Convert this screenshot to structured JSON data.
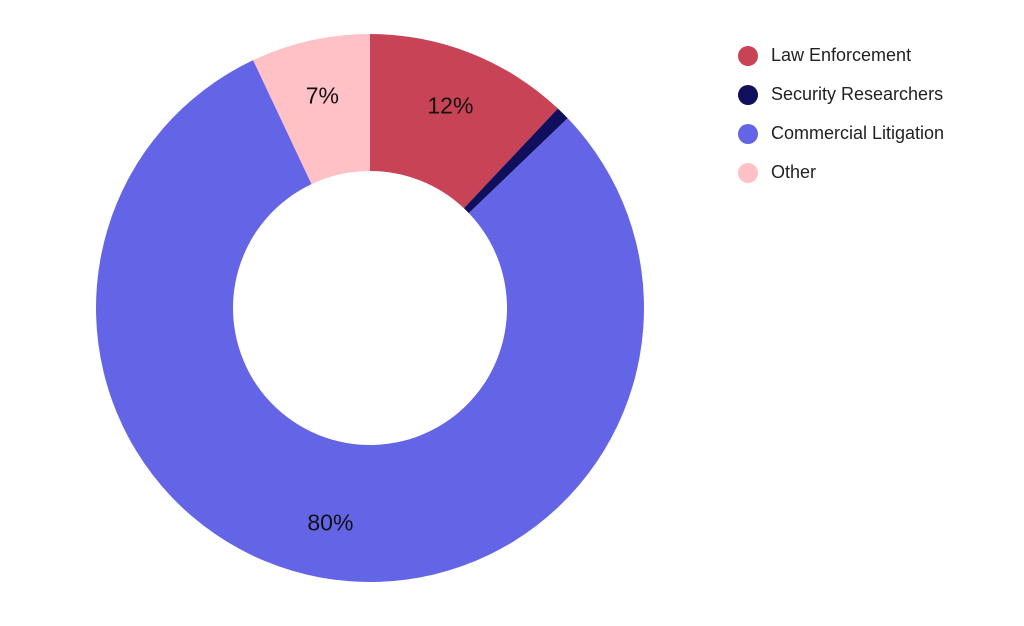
{
  "chart_data": {
    "type": "pie",
    "donut": true,
    "legend_position": "top-right",
    "slices": [
      {
        "name": "Law Enforcement",
        "value": 12,
        "label": "12%",
        "color": "#c74355"
      },
      {
        "name": "Security Researchers",
        "value": 0.8,
        "label": "",
        "color": "#0f0f5c"
      },
      {
        "name": "Commercial Litigation",
        "value": 80,
        "label": "80%",
        "color": "#6464e6"
      },
      {
        "name": "Other",
        "value": 7,
        "label": "7%",
        "color": "#ffc0c6"
      }
    ]
  }
}
